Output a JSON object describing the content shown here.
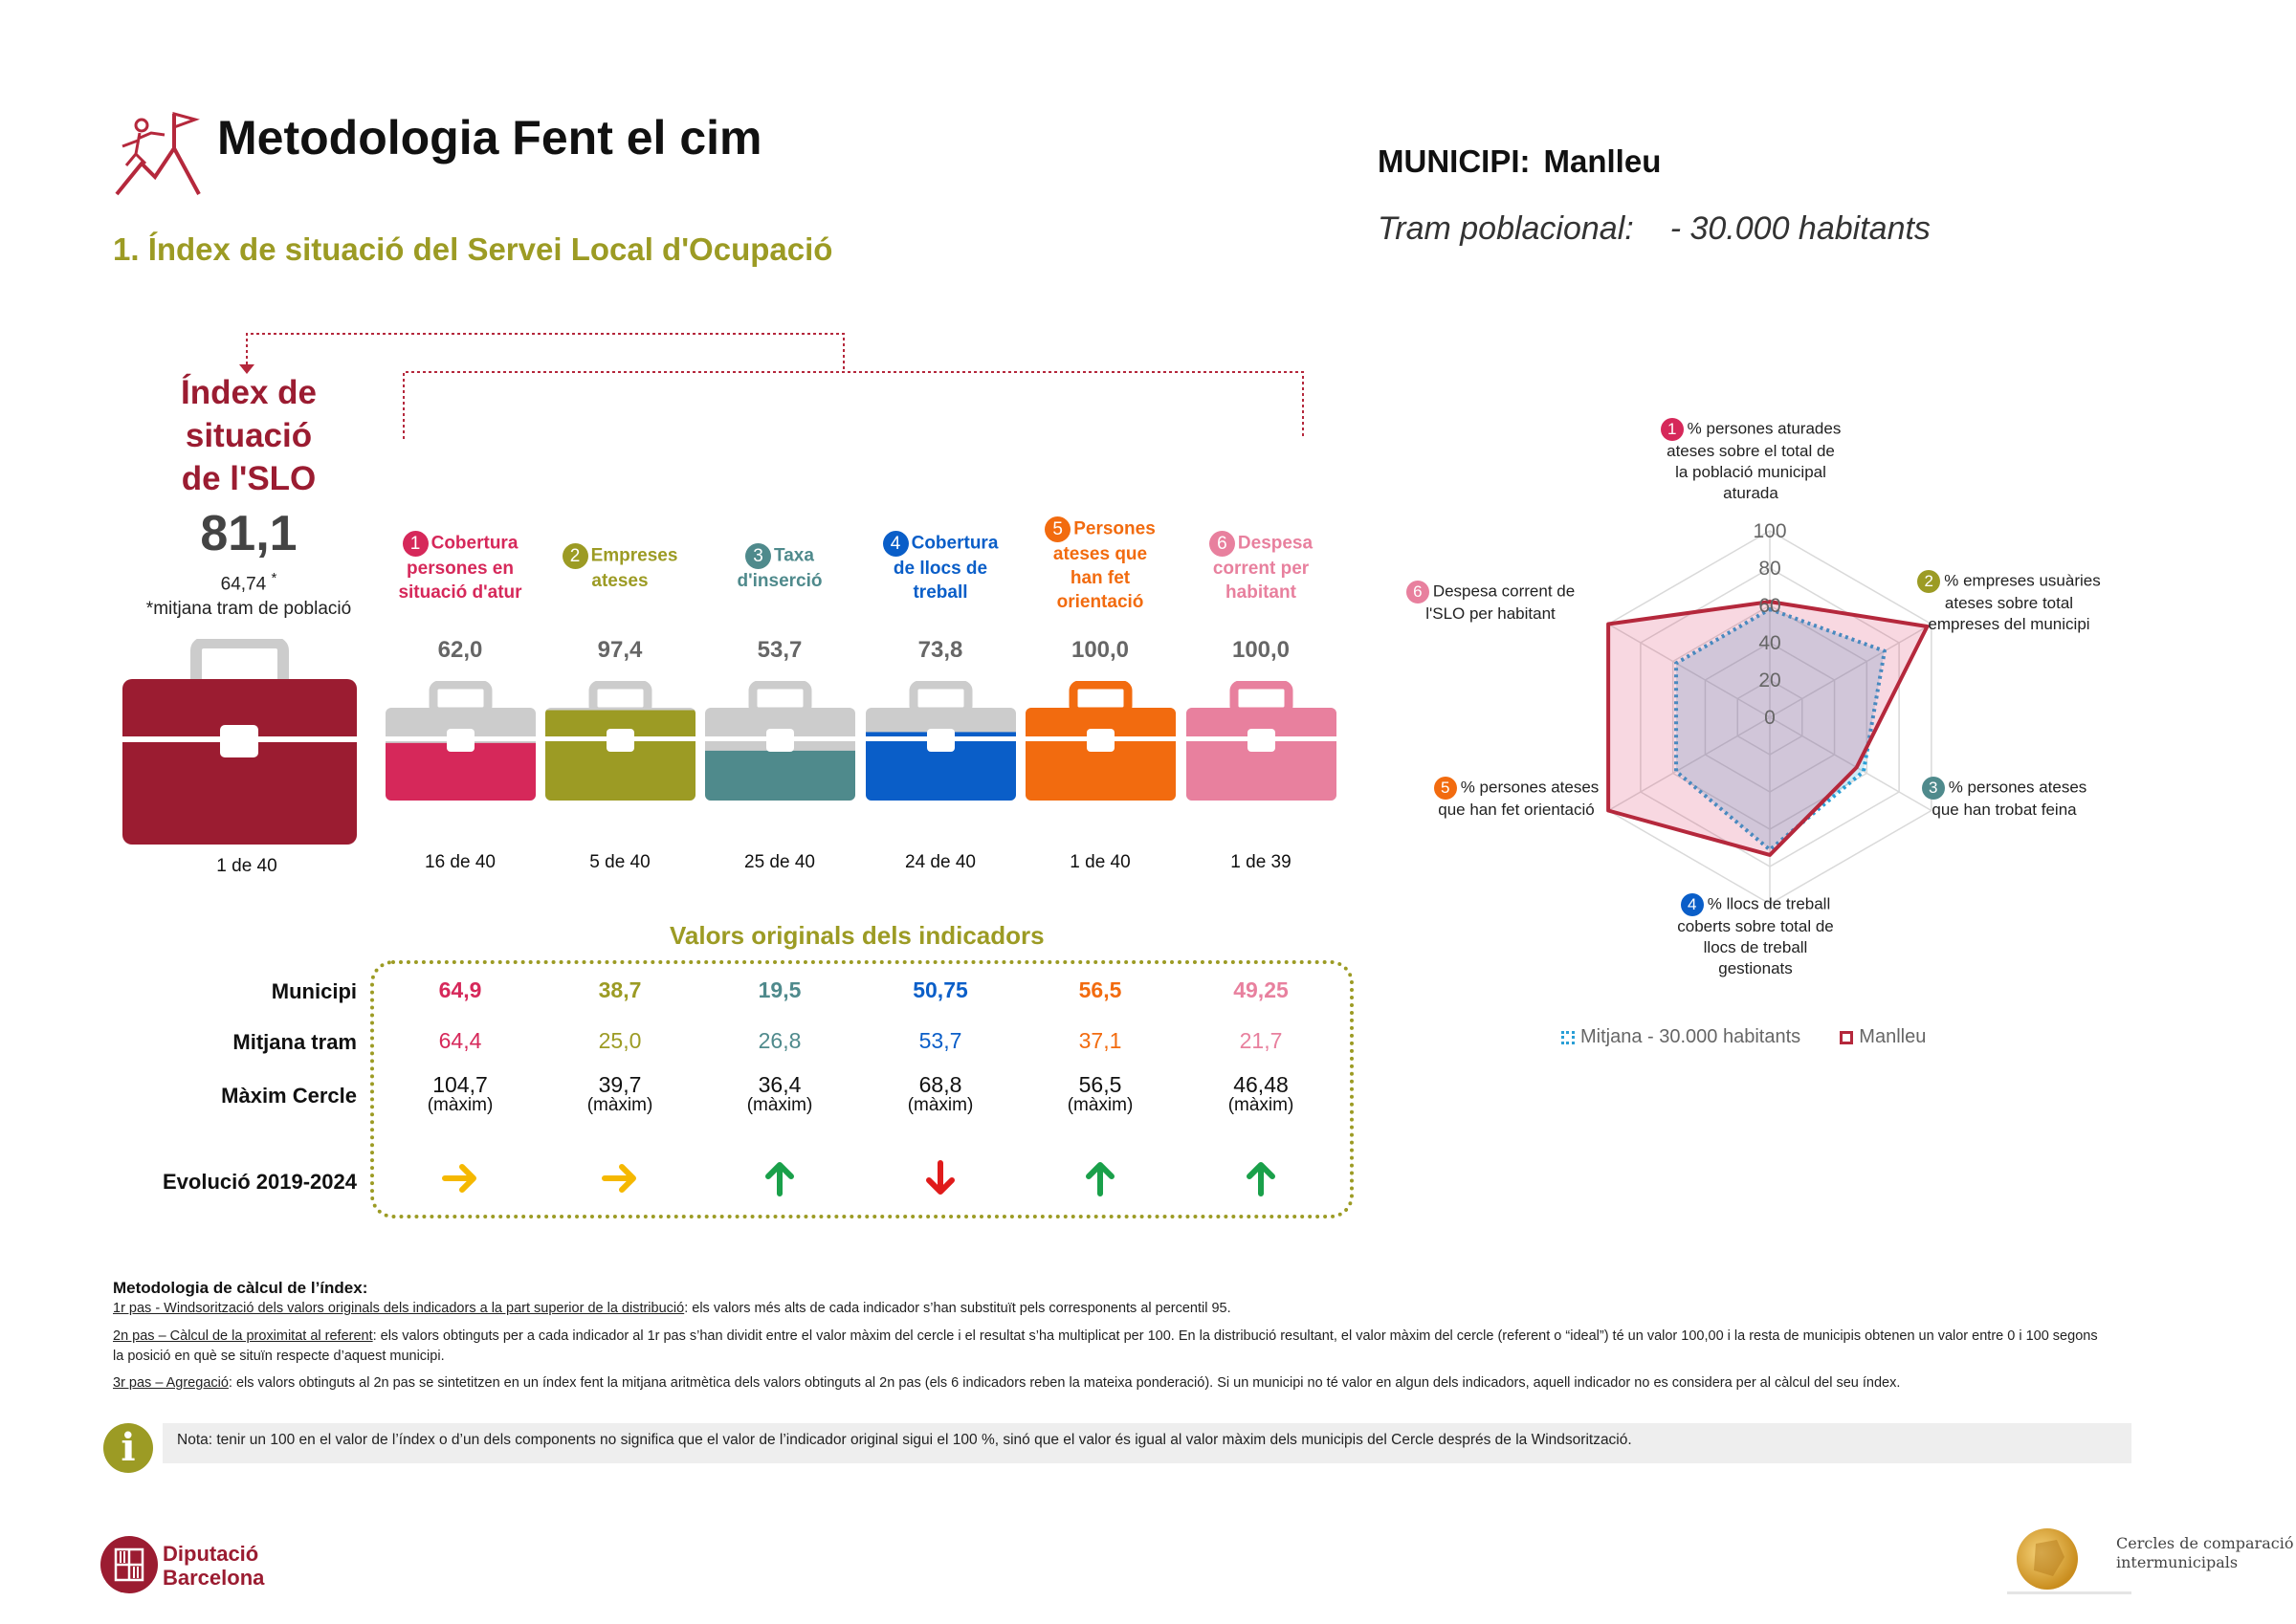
{
  "header": {
    "title": "Metodologia Fent el cim",
    "subtitle": "1. Índex de situació del Servei Local d'Ocupació",
    "municipi_label": "MUNICIPI:",
    "municipi_value": "Manlleu",
    "tram_label": "Tram poblacional:",
    "tram_value": "- 30.000 habitants"
  },
  "index": {
    "title_l1": "Índex de",
    "title_l2": "situació",
    "title_l3": "de l'SLO",
    "value": "81,1",
    "average": "64,74",
    "average_mark": "*",
    "note": "*mitjana tram de població",
    "rank": "1 de 40",
    "color": "#9b1c31"
  },
  "components": [
    {
      "num": "1",
      "l1": "Cobertura",
      "l2": "persones en",
      "l3": "situació d'atur",
      "l4": "",
      "value": "62,0",
      "fill": 0.62,
      "rank": "16 de 40",
      "color": "#d6285a"
    },
    {
      "num": "2",
      "l1": "Empreses",
      "l2": "ateses",
      "l3": "",
      "l4": "",
      "value": "97,4",
      "fill": 0.974,
      "rank": "5 de 40",
      "color": "#9c9b24"
    },
    {
      "num": "3",
      "l1": "Taxa",
      "l2": "d'inserció",
      "l3": "",
      "l4": "",
      "value": "53,7",
      "fill": 0.537,
      "rank": "25 de 40",
      "color": "#4f8a8c"
    },
    {
      "num": "4",
      "l1": "Cobertura",
      "l2": "de llocs de",
      "l3": "treball",
      "l4": "",
      "value": "73,8",
      "fill": 0.738,
      "rank": "24 de 40",
      "color": "#0a5ec8"
    },
    {
      "num": "5",
      "l1": "Persones",
      "l2": "ateses que",
      "l3": "han fet",
      "l4": "orientació",
      "value": "100,0",
      "fill": 1.0,
      "rank": "1 de 40",
      "color": "#f26b0f"
    },
    {
      "num": "6",
      "l1": "Despesa",
      "l2": "corrent per",
      "l3": "habitant",
      "l4": "",
      "value": "100,0",
      "fill": 1.0,
      "rank": "1 de 39",
      "color": "#e8809e"
    }
  ],
  "valors": {
    "title": "Valors originals dels indicadors",
    "row_labels": {
      "municipi": "Municipi",
      "mitjana": "Mitjana tram",
      "maxim": "Màxim Cercle",
      "evolucio": "Evolució 2019-2024"
    },
    "maxim_suffix": "(màxim)",
    "municipi": [
      "64,9",
      "38,7",
      "19,5",
      "50,75",
      "56,5",
      "49,25"
    ],
    "mitjana": [
      "64,4",
      "25,0",
      "26,8",
      "53,7",
      "37,1",
      "21,7"
    ],
    "maxim": [
      "104,7",
      "39,7",
      "36,4",
      "68,8",
      "56,5",
      "46,48"
    ],
    "evolucio": [
      "right",
      "right",
      "up",
      "down",
      "up",
      "up"
    ],
    "arrow_colors": {
      "right": "#f5b800",
      "up": "#1aa04a",
      "down": "#e01b1b"
    }
  },
  "methodology": {
    "heading": "Metodologia de càlcul de l’índex:",
    "p1_u": "1r pas - Windsorització dels valors originals dels indicadors a la part superior de la distribució",
    "p1": ": els valors més alts de cada indicador s’han substituït pels corresponents al percentil 95.",
    "p2_u": "2n pas – Càlcul de la proximitat al referent",
    "p2": ": els valors obtinguts per a cada indicador al 1r pas s’han dividit entre el valor màxim del cercle i el resultat s’ha multiplicat per 100. En la distribució resultant, el valor màxim del cercle (referent o “ideal”) té un valor 100,00 i la resta de municipis obtenen un valor entre 0 i 100 segons la posició en què se situïn respecte d’aquest municipi.",
    "p3_u": "3r pas – Agregació",
    "p3": ": els valors obtinguts al 2n pas se sintetitzen en un índex fent la mitjana aritmètica dels valors obtinguts al 2n pas (els 6 indicadors reben la mateixa ponderació). Si un municipi no té valor en algun dels indicadors, aquell indicador no es considera per al càlcul del seu índex."
  },
  "note": {
    "icon": "info-icon",
    "text": "Nota: tenir un 100 en el valor de l’índex o d’un dels components no significa que el valor de l’indicador original sigui el 100 %, sinó que el valor és igual al valor màxim dels municipis del Cercle després de la Windsorització."
  },
  "radar": {
    "labels": [
      {
        "num": "1",
        "color": "#d6285a",
        "lines": [
          "% persones  aturades",
          "ateses sobre el total de",
          "la població municipal",
          "aturada"
        ]
      },
      {
        "num": "2",
        "color": "#9c9b24",
        "lines": [
          "% empreses usuàries",
          "ateses sobre total",
          "empreses del municipi"
        ]
      },
      {
        "num": "3",
        "color": "#4f8a8c",
        "lines": [
          "% persones ateses",
          "que han trobat feina"
        ]
      },
      {
        "num": "4",
        "color": "#0a5ec8",
        "lines": [
          "% llocs de treball",
          "coberts sobre total de",
          "llocs de treball",
          "gestionats"
        ]
      },
      {
        "num": "5",
        "color": "#f26b0f",
        "lines": [
          "% persones ateses",
          "que han fet orientació"
        ]
      },
      {
        "num": "6",
        "color": "#e8809e",
        "lines": [
          "Despesa corrent de",
          "l'SLO per habitant"
        ]
      }
    ]
  },
  "chart_data": {
    "type": "radar",
    "categories": [
      "1",
      "2",
      "3",
      "4",
      "5",
      "6"
    ],
    "series": [
      {
        "name": "Mitjana - 30.000 habitants",
        "values": [
          58,
          71,
          58,
          71,
          58,
          58
        ],
        "color": "#2a9fd6"
      },
      {
        "name": "Manlleu",
        "values": [
          62,
          97.4,
          53.7,
          73.8,
          100,
          100
        ],
        "color": "#b5283c"
      }
    ],
    "ylim": [
      0,
      100
    ],
    "ticks": [
      "0",
      "20",
      "40",
      "60",
      "80",
      "100"
    ],
    "grid": true,
    "legend": "bottom"
  },
  "footer": {
    "logo_l1": "Diputació",
    "logo_l2": "Barcelona",
    "cercles_l1": "Cercles de comparació",
    "cercles_l2": "intermunicipals"
  }
}
